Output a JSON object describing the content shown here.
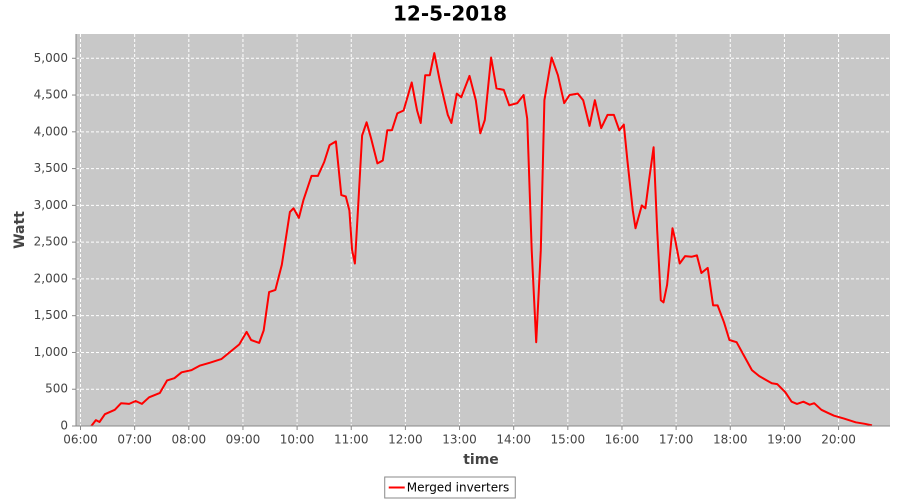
{
  "chart_data": {
    "type": "line",
    "title": "12-5-2018",
    "x_label": "time",
    "y_label": "Watt",
    "x": [
      "06:12",
      "06:17",
      "06:21",
      "06:27",
      "06:38",
      "06:45",
      "06:54",
      "07:01",
      "07:08",
      "07:16",
      "07:28",
      "07:36",
      "07:44",
      "07:52",
      "08:03",
      "08:12",
      "08:23",
      "08:36",
      "08:45",
      "08:56",
      "09:04",
      "09:09",
      "09:18",
      "09:23",
      "09:29",
      "09:36",
      "09:43",
      "09:52",
      "09:56",
      "10:02",
      "10:07",
      "10:16",
      "10:23",
      "10:30",
      "10:36",
      "10:43",
      "10:49",
      "10:54",
      "10:58",
      "11:01",
      "11:04",
      "11:08",
      "11:12",
      "11:17",
      "11:22",
      "11:29",
      "11:35",
      "11:40",
      "11:45",
      "11:51",
      "11:58",
      "12:07",
      "12:13",
      "12:17",
      "12:22",
      "12:27",
      "12:32",
      "12:38",
      "12:47",
      "12:51",
      "12:57",
      "13:02",
      "13:11",
      "13:18",
      "13:23",
      "13:28",
      "13:35",
      "13:41",
      "13:49",
      "13:55",
      "14:04",
      "14:11",
      "14:15",
      "14:20",
      "14:25",
      "14:30",
      "14:34",
      "14:42",
      "14:49",
      "14:56",
      "15:02",
      "15:11",
      "15:17",
      "15:24",
      "15:30",
      "15:37",
      "15:44",
      "15:51",
      "15:57",
      "16:02",
      "16:06",
      "16:12",
      "16:15",
      "16:22",
      "16:26",
      "16:30",
      "16:35",
      "16:39",
      "16:43",
      "16:46",
      "16:50",
      "16:56",
      "16:59",
      "17:04",
      "17:10",
      "17:17",
      "17:23",
      "17:28",
      "17:35",
      "17:41",
      "17:46",
      "17:53",
      "17:59",
      "18:07",
      "18:15",
      "18:24",
      "18:32",
      "18:46",
      "18:52",
      "19:01",
      "19:08",
      "19:14",
      "19:21",
      "19:28",
      "19:33",
      "19:41",
      "19:48",
      "19:55",
      "20:06",
      "20:19",
      "20:29",
      "20:37"
    ],
    "series": [
      {
        "name": "Merged inverters",
        "color": "#ff0000",
        "values": [
          0,
          80,
          55,
          160,
          220,
          310,
          300,
          340,
          300,
          390,
          450,
          620,
          650,
          730,
          760,
          820,
          860,
          910,
          1000,
          1110,
          1280,
          1170,
          1130,
          1300,
          1820,
          1850,
          2190,
          2910,
          2960,
          2830,
          3070,
          3400,
          3400,
          3590,
          3820,
          3870,
          3140,
          3120,
          2930,
          2390,
          2210,
          3070,
          3950,
          4130,
          3910,
          3570,
          3610,
          4020,
          4020,
          4250,
          4290,
          4670,
          4290,
          4120,
          4770,
          4770,
          5070,
          4700,
          4230,
          4120,
          4520,
          4470,
          4760,
          4430,
          3980,
          4160,
          5010,
          4590,
          4570,
          4360,
          4390,
          4500,
          4180,
          2390,
          1140,
          2390,
          4430,
          5010,
          4770,
          4390,
          4500,
          4520,
          4430,
          4080,
          4430,
          4050,
          4230,
          4230,
          4020,
          4100,
          3610,
          2930,
          2690,
          3000,
          2960,
          3340,
          3790,
          2660,
          1710,
          1680,
          1920,
          2690,
          2530,
          2210,
          2310,
          2300,
          2320,
          2080,
          2150,
          1640,
          1640,
          1410,
          1170,
          1140,
          960,
          760,
          680,
          580,
          570,
          460,
          330,
          300,
          330,
          290,
          310,
          220,
          180,
          140,
          100,
          50,
          30,
          10
        ]
      }
    ],
    "xlim": [
      "05:55",
      "20:57"
    ],
    "xticks": [
      "06:00",
      "07:00",
      "08:00",
      "09:00",
      "10:00",
      "11:00",
      "12:00",
      "13:00",
      "14:00",
      "15:00",
      "16:00",
      "17:00",
      "18:00",
      "19:00",
      "20:00"
    ],
    "ylim": [
      0,
      5330
    ],
    "yticks": [
      0,
      500,
      {
        "value": 1000,
        "label": "1,000"
      },
      {
        "value": 1500,
        "label": "1,500"
      },
      {
        "value": 2000,
        "label": "2,000"
      },
      {
        "value": 2500,
        "label": "2,500"
      },
      {
        "value": 3000,
        "label": "3,000"
      },
      {
        "value": 3500,
        "label": "3,500"
      },
      {
        "value": 4000,
        "label": "4,000"
      },
      {
        "value": 4500,
        "label": "4,500"
      },
      {
        "value": 5000,
        "label": "5,000"
      }
    ],
    "grid": true,
    "legend": "bottom"
  }
}
